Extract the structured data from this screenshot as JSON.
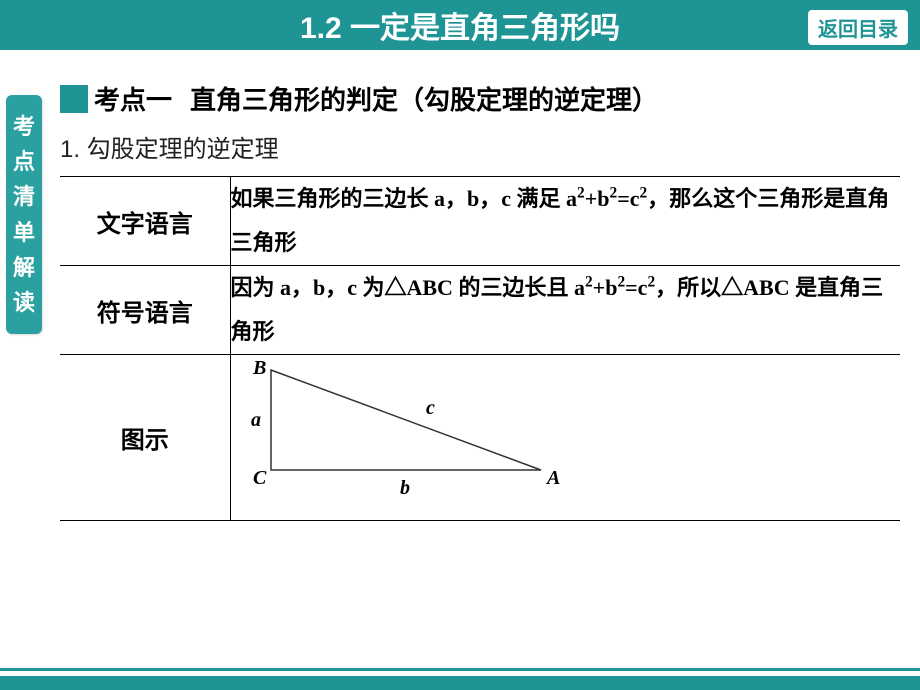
{
  "header": {
    "title": "1.2 一定是直角三角形吗",
    "return_label": "返回目录"
  },
  "side_tab": "考点清单解读",
  "kaodian": {
    "marker_color": "#1f9494",
    "label": "考点一",
    "title": "直角三角形的判定（勾股定理的逆定理）"
  },
  "sub_title": "1. 勾股定理的逆定理",
  "table": {
    "rows": [
      {
        "label": "文字语言",
        "content_html": "如果三角形的三边长 a，b，c 满足 a<sup>2</sup>+b<sup>2</sup>=c<sup>2</sup>，那么这个三角形是直角三角形"
      },
      {
        "label": "符号语言",
        "content_html": "因为 a，b，c 为△ABC 的三边长且 a<sup>2</sup>+b<sup>2</sup>=c<sup>2</sup>，所以△ABC 是直角三角形"
      },
      {
        "label": "图示",
        "is_diagram": true
      }
    ]
  },
  "diagram": {
    "vertices": {
      "B": "B",
      "C": "C",
      "A": "A"
    },
    "sides": {
      "a": "a",
      "b": "b",
      "c": "c"
    },
    "line_color": "#333333",
    "label_font": "italic 20px 'Times New Roman', serif",
    "coords": {
      "B": [
        40,
        15
      ],
      "C": [
        40,
        115
      ],
      "A": [
        310,
        115
      ]
    }
  },
  "colors": {
    "primary": "#1f9494",
    "text": "#000000",
    "bg": "#ffffff"
  }
}
